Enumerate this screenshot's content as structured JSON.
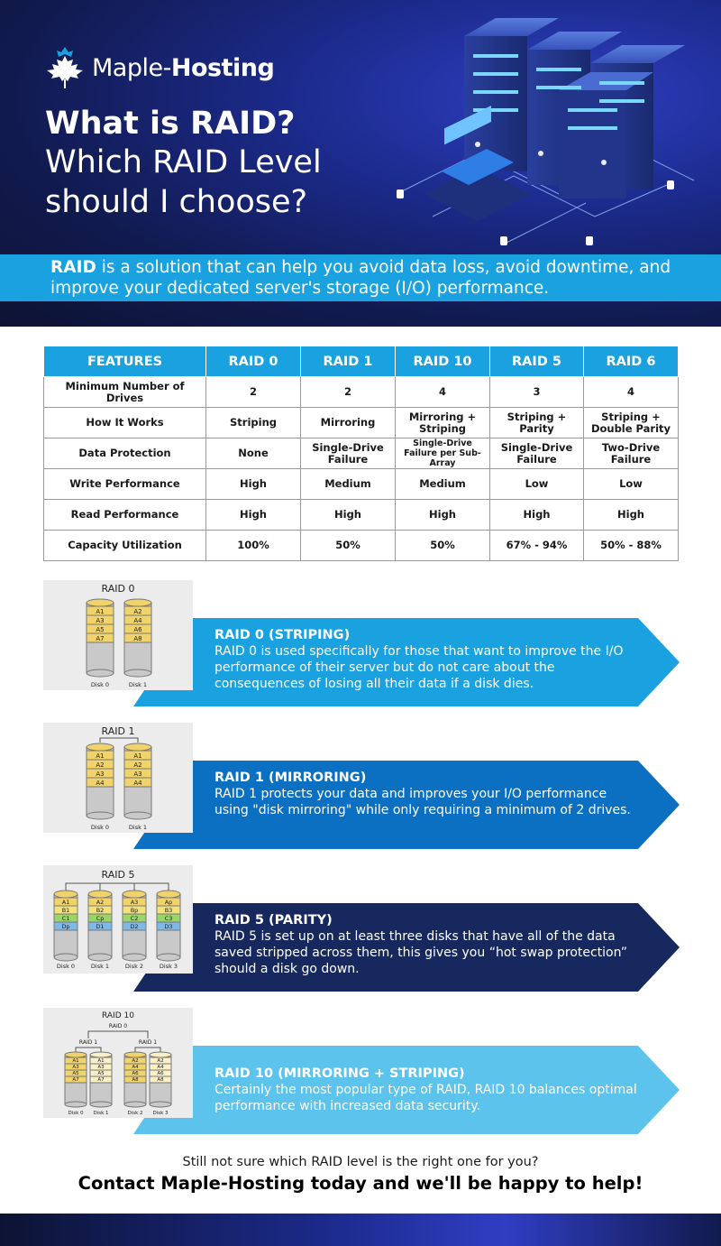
{
  "brand": {
    "name_light": "Maple-",
    "name_bold": "Hosting"
  },
  "hero": {
    "title_line1": "What is RAID?",
    "title_line2": "Which RAID Level should I choose?"
  },
  "intro": {
    "bold": "RAID",
    "text": " is a solution that can help you avoid data loss, avoid downtime, and improve your dedicated server's storage (I/O) performance."
  },
  "table": {
    "headers": [
      "FEATURES",
      "RAID 0",
      "RAID 1",
      "RAID 10",
      "RAID 5",
      "RAID 6"
    ],
    "rows": [
      [
        "Minimum Number of Drives",
        "2",
        "2",
        "4",
        "3",
        "4"
      ],
      [
        "How It Works",
        "Striping",
        "Mirroring",
        "Mirroring + Striping",
        "Striping + Parity",
        "Striping + Double Parity"
      ],
      [
        "Data Protection",
        "None",
        "Single-Drive Failure",
        "Single-Drive Failure per Sub-Array",
        "Single-Drive Failure",
        "Two-Drive Failure"
      ],
      [
        "Write Performance",
        "High",
        "Medium",
        "Medium",
        "Low",
        "Low"
      ],
      [
        "Read Performance",
        "High",
        "High",
        "High",
        "High",
        "High"
      ],
      [
        "Capacity Utilization",
        "100%",
        "50%",
        "50%",
        "67% - 94%",
        "50% - 88%"
      ]
    ]
  },
  "sections": [
    {
      "diagram_title": "RAID 0",
      "disks": [
        "Disk 0",
        "Disk 1"
      ],
      "blocks": [
        [
          "A1",
          "A3",
          "A5",
          "A7"
        ],
        [
          "A2",
          "A4",
          "A6",
          "A8"
        ]
      ],
      "title": "RAID 0 (STRIPING)",
      "description": "RAID 0 is used specifically for those that want to improve the I/O performance of their server but do not care about the consequences of losing all their data if a disk dies.",
      "color": "#1aa1e0"
    },
    {
      "diagram_title": "RAID 1",
      "disks": [
        "Disk 0",
        "Disk 1"
      ],
      "blocks": [
        [
          "A1",
          "A2",
          "A3",
          "A4"
        ],
        [
          "A1",
          "A2",
          "A3",
          "A4"
        ]
      ],
      "title": "RAID 1 (MIRRORING)",
      "description": "RAID 1 protects your data and improves your I/O performance using \"disk mirroring\" while only requiring a minimum of 2 drives.",
      "color": "#0b6fc2"
    },
    {
      "diagram_title": "RAID 5",
      "disks": [
        "Disk 0",
        "Disk 1",
        "Disk 2",
        "Disk 3"
      ],
      "blocks": [
        [
          "A1",
          "B1",
          "C1",
          "Dp"
        ],
        [
          "A2",
          "B2",
          "Cp",
          "D1"
        ],
        [
          "A3",
          "Bp",
          "C2",
          "D2"
        ],
        [
          "Ap",
          "B3",
          "C3",
          "D3"
        ]
      ],
      "title": "RAID 5 (PARITY)",
      "description": "RAID 5 is set up on at least three disks that have all of the data saved stripped across them, this gives you “hot swap protection” should a disk go down.",
      "color": "#17285e"
    },
    {
      "diagram_title": "RAID 10",
      "sub_top": "RAID 0",
      "sub_pairs": [
        "RAID 1",
        "RAID 1"
      ],
      "disks": [
        "Disk 0",
        "Disk 1",
        "Disk 2",
        "Disk 3"
      ],
      "blocks": [
        [
          "A1",
          "A3",
          "A5",
          "A7"
        ],
        [
          "A1",
          "A3",
          "A5",
          "A7"
        ],
        [
          "A2",
          "A4",
          "A6",
          "A8"
        ],
        [
          "A2",
          "A4",
          "A6",
          "A8"
        ]
      ],
      "title": "RAID 10 (MIRRORING + STRIPING)",
      "description": "Certainly the most popular type of RAID, RAID 10 balances optimal performance with increased data security.",
      "color": "#5cc3ec"
    }
  ],
  "footer": {
    "question": "Still not sure which RAID level is the right one for you?",
    "cta": "Contact Maple-Hosting today and we'll be happy to help!"
  }
}
